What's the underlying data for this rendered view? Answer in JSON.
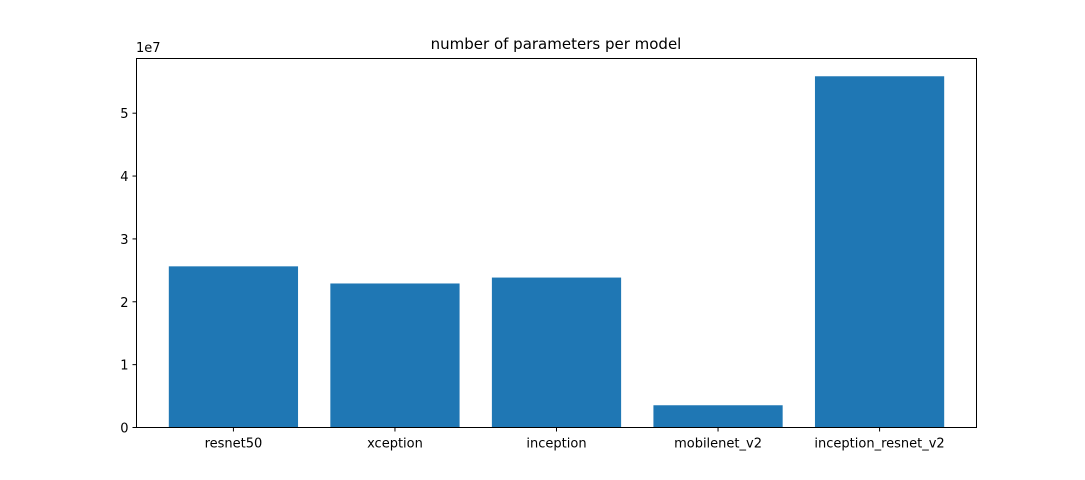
{
  "chart_data": {
    "type": "bar",
    "title": "number of parameters per model",
    "xlabel": "",
    "ylabel": "",
    "y_multiplier_label": "1e7",
    "categories": [
      "resnet50",
      "xception",
      "inception",
      "mobilenet_v2",
      "inception_resnet_v2"
    ],
    "values": [
      25636712,
      22910480,
      23851784,
      3538984,
      55873736
    ],
    "ylim": [
      0,
      58700000
    ],
    "y_ticks": [
      0,
      10000000,
      20000000,
      30000000,
      40000000,
      50000000
    ],
    "y_tick_labels": [
      "0",
      "1",
      "2",
      "3",
      "4",
      "5"
    ],
    "bar_color": "#1f77b4",
    "grid": false,
    "legend": "none"
  }
}
